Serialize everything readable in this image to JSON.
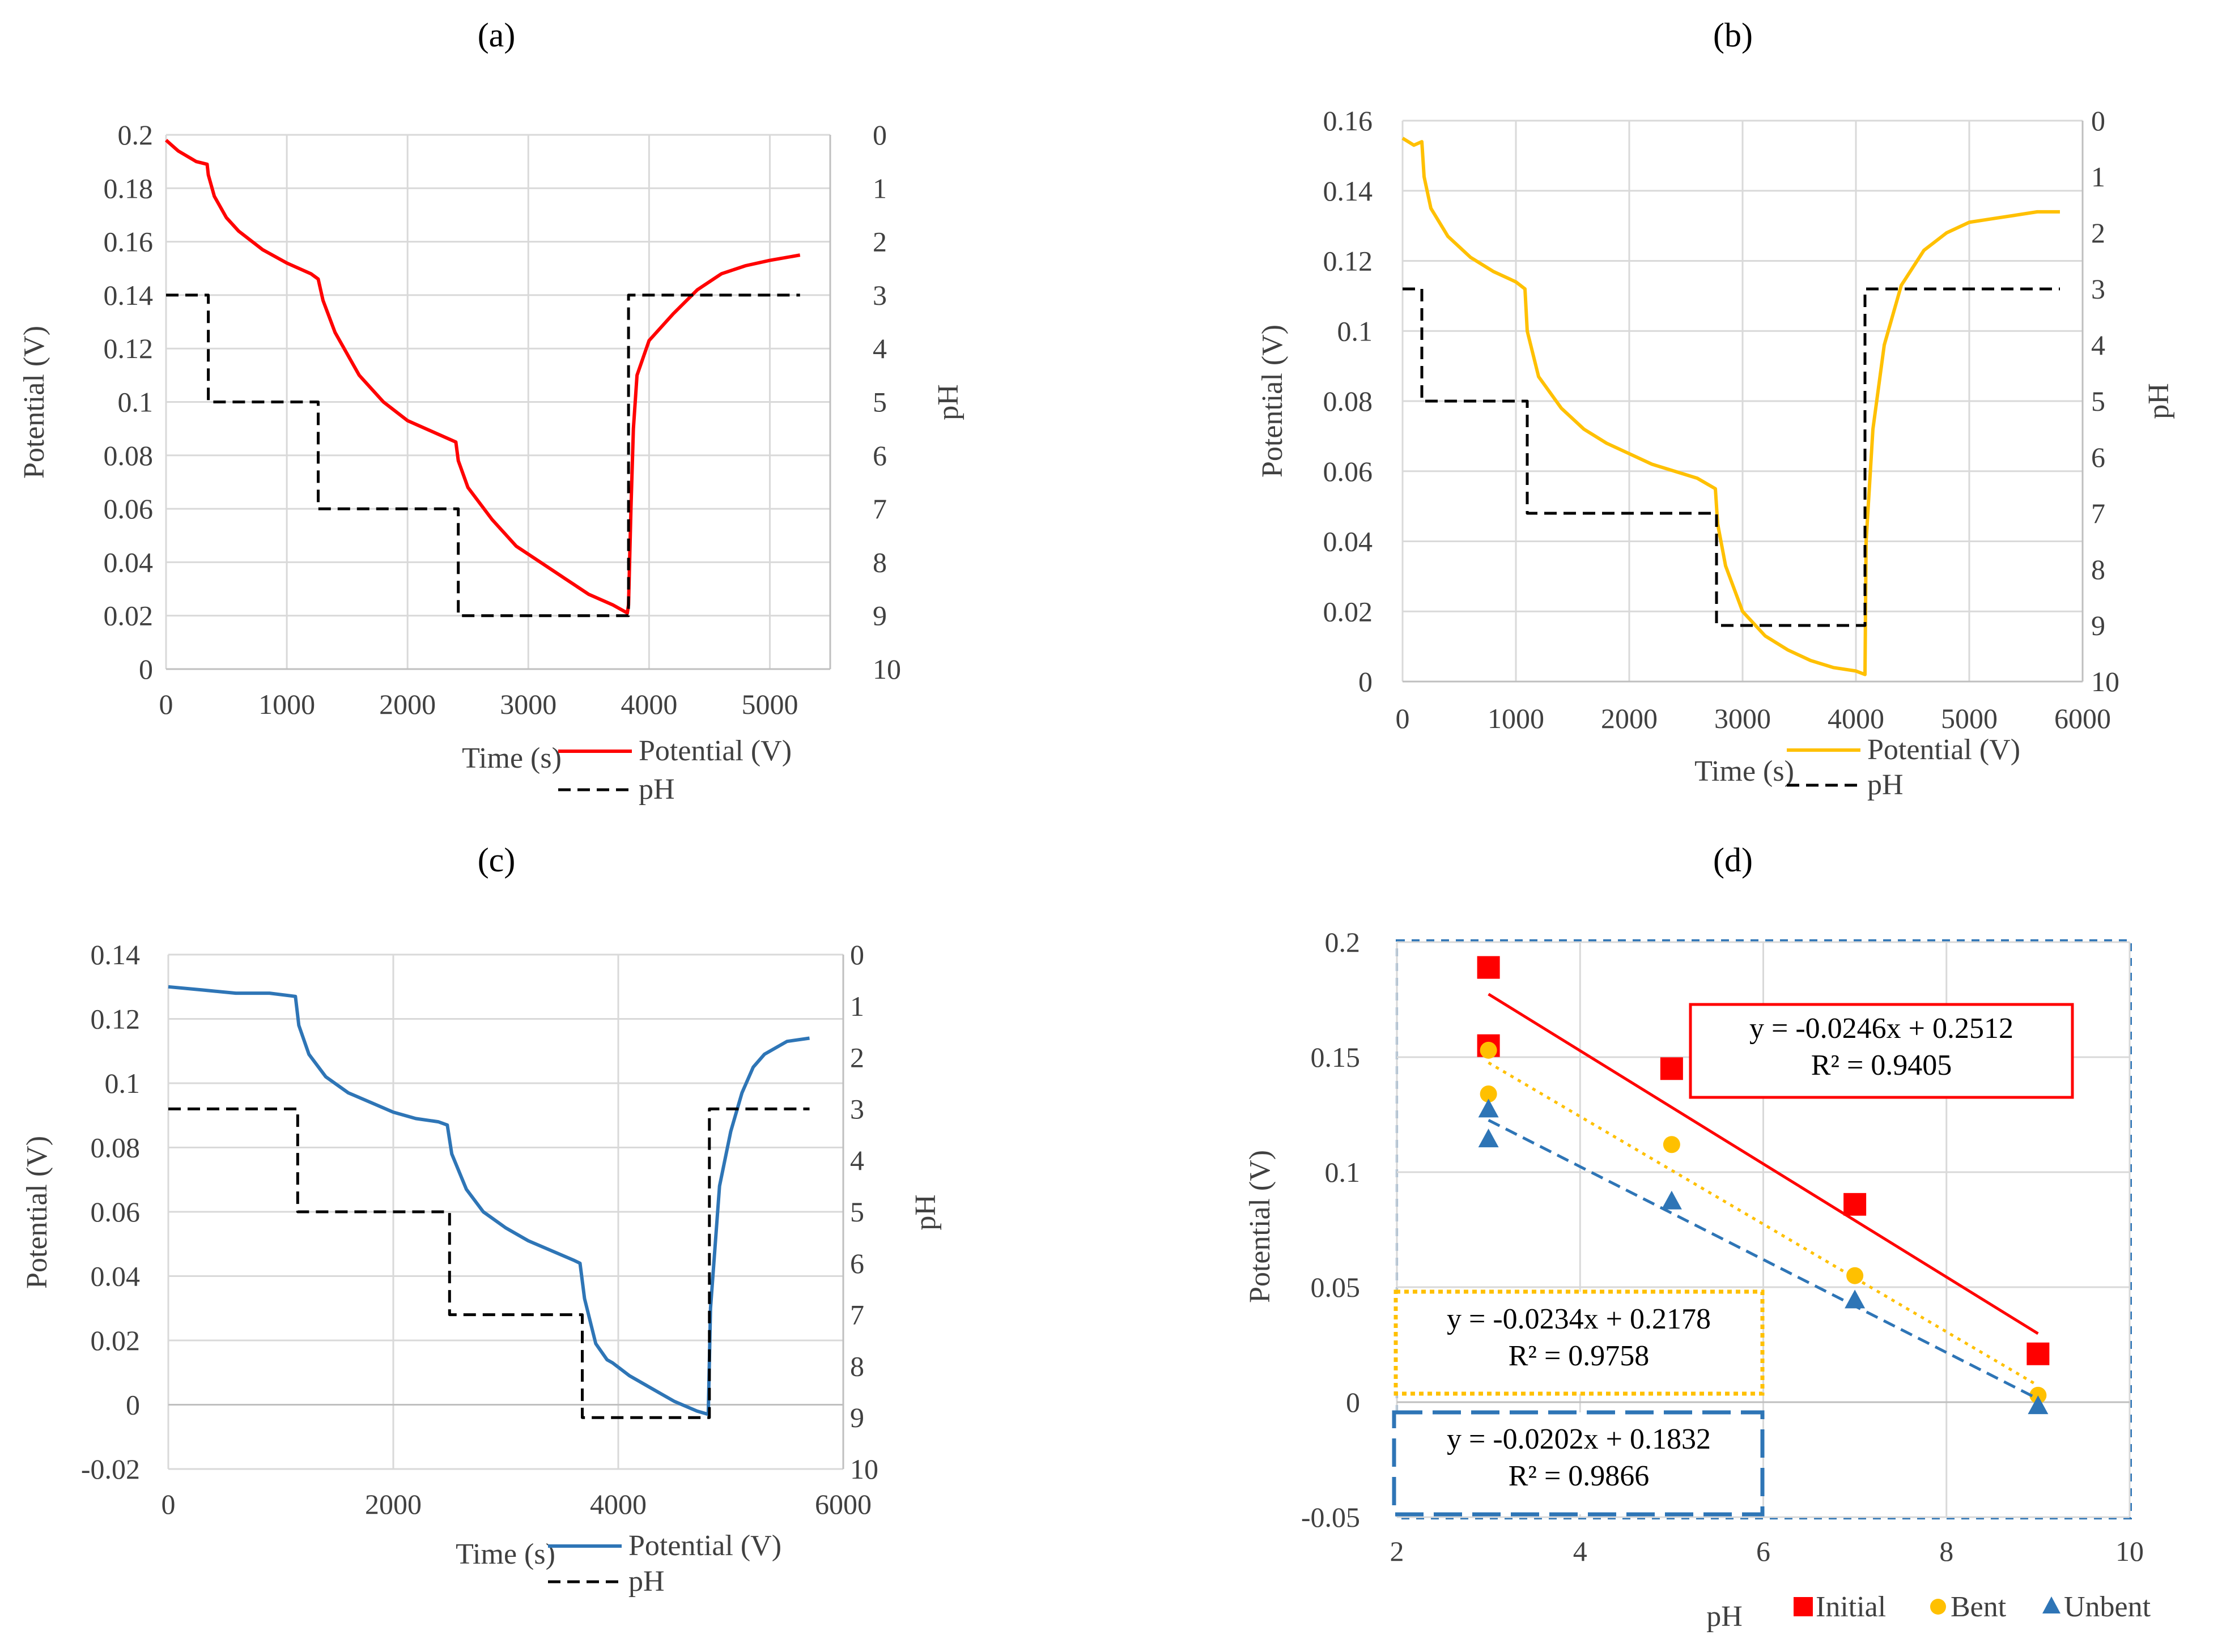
{
  "panels": [
    {
      "label": "(a)",
      "chart_data": {
        "type": "line",
        "title": "",
        "xlabel": "Time (s)",
        "ylabel": "Potential (V)",
        "y2label": "pH",
        "xlim": [
          0,
          5500
        ],
        "ylim": [
          0,
          0.2
        ],
        "y2lim": [
          10,
          0
        ],
        "xticks": [
          "0",
          "1000",
          "2000",
          "3000",
          "4000",
          "5000"
        ],
        "yticks": [
          "0",
          "0.02",
          "0.04",
          "0.06",
          "0.08",
          "0.1",
          "0.12",
          "0.14",
          "0.16",
          "0.18",
          "0.2"
        ],
        "y2ticks": [
          "0",
          "1",
          "2",
          "3",
          "4",
          "5",
          "6",
          "7",
          "8",
          "9",
          "10"
        ],
        "grid": true,
        "series": [
          {
            "name": "Potential (V)",
            "axis": "left",
            "color": "#ff0000",
            "style": "solid",
            "x": [
              0,
              100,
              250,
              340,
              350,
              400,
              500,
              600,
              800,
              1000,
              1200,
              1260,
              1300,
              1400,
              1600,
              1800,
              2000,
              2200,
              2400,
              2420,
              2500,
              2700,
              2900,
              3100,
              3300,
              3500,
              3700,
              3820,
              3830,
              3850,
              3870,
              3900,
              4000,
              4200,
              4400,
              4600,
              4800,
              5000,
              5250
            ],
            "values": [
              0.198,
              0.194,
              0.19,
              0.189,
              0.185,
              0.177,
              0.169,
              0.164,
              0.157,
              0.152,
              0.148,
              0.146,
              0.138,
              0.126,
              0.11,
              0.1,
              0.093,
              0.089,
              0.085,
              0.078,
              0.068,
              0.056,
              0.046,
              0.04,
              0.034,
              0.028,
              0.024,
              0.021,
              0.024,
              0.06,
              0.09,
              0.11,
              0.123,
              0.133,
              0.142,
              0.148,
              0.151,
              0.153,
              0.155
            ]
          },
          {
            "name": "pH",
            "axis": "right",
            "color": "#000000",
            "style": "dashed",
            "x": [
              0,
              350,
              350,
              1260,
              1260,
              2420,
              2420,
              3830,
              3830,
              5250
            ],
            "values": [
              3,
              3,
              5,
              5,
              7,
              7,
              9,
              9,
              3,
              3
            ]
          }
        ],
        "legend": [
          "Potential (V)",
          "pH"
        ]
      }
    },
    {
      "label": "(b)",
      "chart_data": {
        "type": "line",
        "title": "",
        "xlabel": "Time (s)",
        "ylabel": "Potential (V)",
        "y2label": "pH",
        "xlim": [
          0,
          6000
        ],
        "ylim": [
          0,
          0.16
        ],
        "y2lim": [
          10,
          0
        ],
        "xticks": [
          "0",
          "1000",
          "2000",
          "3000",
          "4000",
          "5000",
          "6000"
        ],
        "yticks": [
          "0",
          "0.02",
          "0.04",
          "0.06",
          "0.08",
          "0.1",
          "0.12",
          "0.14",
          "0.16"
        ],
        "y2ticks": [
          "0",
          "1",
          "2",
          "3",
          "4",
          "5",
          "6",
          "7",
          "8",
          "9",
          "10"
        ],
        "grid": true,
        "series": [
          {
            "name": "Potential (V)",
            "axis": "left",
            "color": "#ffc000",
            "style": "solid",
            "x": [
              0,
              100,
              170,
              190,
              250,
              400,
              600,
              800,
              1000,
              1080,
              1100,
              1200,
              1400,
              1600,
              1800,
              2000,
              2200,
              2400,
              2600,
              2760,
              2780,
              2850,
              3000,
              3200,
              3400,
              3600,
              3800,
              4000,
              4080,
              4090,
              4150,
              4250,
              4400,
              4600,
              4800,
              5000,
              5200,
              5400,
              5600,
              5800
            ],
            "values": [
              0.155,
              0.153,
              0.154,
              0.144,
              0.135,
              0.127,
              0.121,
              0.117,
              0.114,
              0.112,
              0.1,
              0.087,
              0.078,
              0.072,
              0.068,
              0.065,
              0.062,
              0.06,
              0.058,
              0.055,
              0.045,
              0.033,
              0.02,
              0.013,
              0.009,
              0.006,
              0.004,
              0.003,
              0.002,
              0.04,
              0.072,
              0.096,
              0.113,
              0.123,
              0.128,
              0.131,
              0.132,
              0.133,
              0.134,
              0.134
            ]
          },
          {
            "name": "pH",
            "axis": "right",
            "color": "#000000",
            "style": "dashed",
            "x": [
              0,
              170,
              170,
              1100,
              1100,
              2770,
              2770,
              4080,
              4080,
              5800
            ],
            "values": [
              3,
              3,
              5,
              5,
              7,
              7,
              9,
              9,
              3,
              3
            ]
          }
        ],
        "legend": [
          "Potential (V)",
          "pH"
        ]
      }
    },
    {
      "label": "(c)",
      "chart_data": {
        "type": "line",
        "title": "",
        "xlabel": "Time (s)",
        "ylabel": "Potential (V)",
        "y2label": "pH",
        "xlim": [
          0,
          6000
        ],
        "ylim": [
          -0.02,
          0.14
        ],
        "y2lim": [
          10,
          0
        ],
        "xticks": [
          "0",
          "2000",
          "4000",
          "6000"
        ],
        "yticks": [
          "-0.02",
          "0",
          "0.02",
          "0.04",
          "0.06",
          "0.08",
          "0.1",
          "0.12",
          "0.14"
        ],
        "y2ticks": [
          "0",
          "1",
          "2",
          "3",
          "4",
          "5",
          "6",
          "7",
          "8",
          "9",
          "10"
        ],
        "grid": true,
        "series": [
          {
            "name": "Potential (V)",
            "axis": "left",
            "color": "#2e75b6",
            "style": "solid",
            "x": [
              0,
              300,
              600,
              900,
              1130,
              1160,
              1250,
              1400,
              1600,
              1800,
              2000,
              2200,
              2400,
              2480,
              2520,
              2650,
              2800,
              3000,
              3200,
              3400,
              3600,
              3660,
              3700,
              3800,
              3900,
              3950,
              4100,
              4300,
              4500,
              4700,
              4800,
              4820,
              4900,
              5000,
              5100,
              5200,
              5300,
              5500,
              5700
            ],
            "values": [
              0.13,
              0.129,
              0.128,
              0.128,
              0.127,
              0.118,
              0.109,
              0.102,
              0.097,
              0.094,
              0.091,
              0.089,
              0.088,
              0.087,
              0.078,
              0.067,
              0.06,
              0.055,
              0.051,
              0.048,
              0.045,
              0.044,
              0.033,
              0.019,
              0.014,
              0.013,
              0.009,
              0.005,
              0.001,
              -0.002,
              -0.003,
              0.03,
              0.068,
              0.085,
              0.097,
              0.105,
              0.109,
              0.113,
              0.114
            ]
          },
          {
            "name": "pH",
            "axis": "right",
            "color": "#000000",
            "style": "dashed",
            "x": [
              0,
              1150,
              1150,
              2500,
              2500,
              3680,
              3680,
              4810,
              4810,
              5700
            ],
            "values": [
              3,
              3,
              5,
              5,
              7,
              7,
              9,
              9,
              3,
              3
            ]
          }
        ],
        "legend": [
          "Potential (V)",
          "pH"
        ]
      }
    },
    {
      "label": "(d)",
      "chart_data": {
        "type": "scatter",
        "title": "",
        "xlabel": "pH",
        "ylabel": "Potential (V)",
        "xlim": [
          2,
          10
        ],
        "ylim": [
          -0.05,
          0.2
        ],
        "xticks": [
          "2",
          "4",
          "6",
          "8",
          "10"
        ],
        "yticks": [
          "-0.05",
          "0",
          "0.05",
          "0.1",
          "0.15",
          "0.2"
        ],
        "grid": true,
        "series": [
          {
            "name": "Initial",
            "marker": "square",
            "color": "#ff0000",
            "x": [
              3,
              3,
              5,
              7,
              9
            ],
            "values": [
              0.189,
              0.155,
              0.145,
              0.086,
              0.021
            ],
            "trendline": {
              "slope": -0.0246,
              "intercept": 0.2512,
              "style": "solid",
              "equation": "y = -0.0246x + 0.2512",
              "r2": "R² = 0.9405"
            }
          },
          {
            "name": "Bent",
            "marker": "circle",
            "color": "#ffc000",
            "x": [
              3,
              3,
              5,
              7,
              9
            ],
            "values": [
              0.153,
              0.134,
              0.112,
              0.055,
              0.003
            ],
            "trendline": {
              "slope": -0.0234,
              "intercept": 0.2178,
              "style": "dotted",
              "equation": "y = -0.0234x + 0.2178",
              "r2": "R² = 0.9758"
            }
          },
          {
            "name": "Unbent",
            "marker": "triangle",
            "color": "#2e75b6",
            "x": [
              3,
              3,
              5,
              7,
              9
            ],
            "values": [
              0.127,
              0.114,
              0.087,
              0.044,
              -0.002
            ],
            "trendline": {
              "slope": -0.0202,
              "intercept": 0.1832,
              "style": "dashed",
              "equation": "y = -0.0202x + 0.1832",
              "r2": "R² = 0.9866"
            }
          }
        ],
        "legend": [
          "Initial",
          "Bent",
          "Unbent"
        ]
      }
    }
  ]
}
